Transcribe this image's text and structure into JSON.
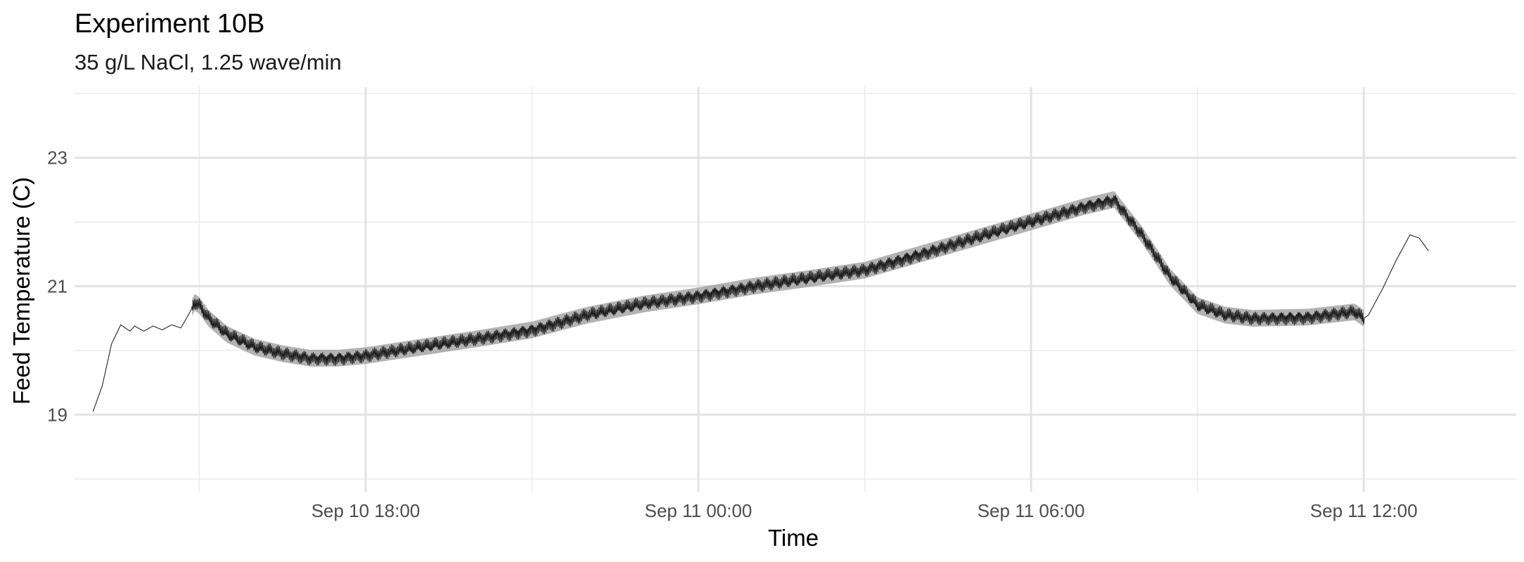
{
  "chart_data": {
    "type": "line",
    "title": "Experiment 10B",
    "subtitle": "35 g/L NaCl, 1.25 wave/min",
    "xlabel": "Time",
    "ylabel": "Feed Temperature (C)",
    "x_ticks": [
      "Sep 10 18:00",
      "Sep 11 00:00",
      "Sep 11 06:00",
      "Sep 11 12:00"
    ],
    "y_ticks": [
      19,
      21,
      23
    ],
    "xlim": [
      "2024-09-10 12:45",
      "2024-09-11 14:45"
    ],
    "ylim": [
      17.8,
      24.1
    ],
    "grid": true,
    "line_color": "#000000",
    "band_color": "#9a9a9a",
    "series": [
      {
        "x": [
          "2024-09-10 13:05",
          "2024-09-10 13:15",
          "2024-09-10 13:25",
          "2024-09-10 13:35",
          "2024-09-10 13:45",
          "2024-09-10 13:50",
          "2024-09-10 14:00",
          "2024-09-10 14:10",
          "2024-09-10 14:20",
          "2024-09-10 14:30",
          "2024-09-10 14:40",
          "2024-09-10 14:50",
          "2024-09-10 14:55",
          "2024-09-10 15:00",
          "2024-09-10 15:10",
          "2024-09-10 15:30",
          "2024-09-10 16:00",
          "2024-09-10 16:30",
          "2024-09-10 17:00",
          "2024-09-10 17:30",
          "2024-09-10 18:00",
          "2024-09-10 19:00",
          "2024-09-10 20:00",
          "2024-09-10 21:00",
          "2024-09-10 22:00",
          "2024-09-10 23:00",
          "2024-09-11 00:00",
          "2024-09-11 01:00",
          "2024-09-11 02:00",
          "2024-09-11 03:00",
          "2024-09-11 04:00",
          "2024-09-11 05:00",
          "2024-09-11 06:00",
          "2024-09-11 07:00",
          "2024-09-11 07:30",
          "2024-09-11 08:00",
          "2024-09-11 08:30",
          "2024-09-11 09:00",
          "2024-09-11 09:30",
          "2024-09-11 10:00",
          "2024-09-11 11:00",
          "2024-09-11 11:50",
          "2024-09-11 12:00",
          "2024-09-11 12:05",
          "2024-09-11 12:20",
          "2024-09-11 12:35",
          "2024-09-11 12:50",
          "2024-09-11 13:00",
          "2024-09-11 13:10"
        ],
        "y": [
          19.05,
          19.45,
          20.1,
          20.4,
          20.3,
          20.38,
          20.3,
          20.38,
          20.32,
          20.4,
          20.35,
          20.6,
          20.75,
          20.7,
          20.5,
          20.25,
          20.05,
          19.95,
          19.88,
          19.88,
          19.92,
          20.05,
          20.18,
          20.32,
          20.55,
          20.72,
          20.85,
          21.0,
          21.12,
          21.25,
          21.5,
          21.75,
          22.0,
          22.25,
          22.35,
          21.8,
          21.15,
          20.7,
          20.55,
          20.5,
          20.52,
          20.6,
          20.5,
          20.55,
          20.95,
          21.4,
          21.8,
          21.75,
          21.55
        ]
      }
    ]
  }
}
